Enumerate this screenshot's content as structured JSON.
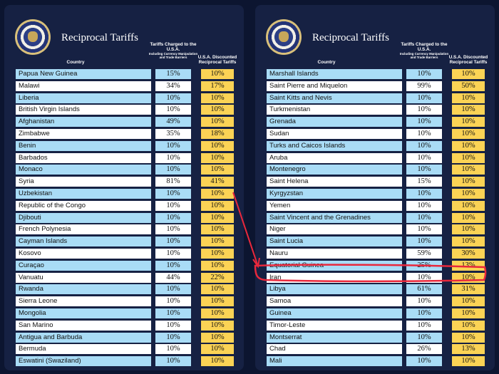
{
  "title": "Reciprocal Tariffs",
  "headers": {
    "country": "Country",
    "charged": "Tariffs Charged to the U.S.A.",
    "charged_sub": "Including Currency Manipulation and Trade Barriers",
    "discounted": "U.S.A. Discounted Reciprocal Tariffs"
  },
  "colors": {
    "row_blue": "#a9dcf6",
    "row_white": "#ffffff",
    "discount_yellow": "#fbd355",
    "panel_navy": "#162143",
    "highlight_red": "#e8283c"
  },
  "icons": {
    "seal": "presidential-seal-icon"
  },
  "annotation": {
    "highlighted_country": "Iran",
    "type": "red-arrow-and-outline"
  },
  "left_table": [
    {
      "country": "Papua New Guinea",
      "charged": "15%",
      "discounted": "10%"
    },
    {
      "country": "Malawi",
      "charged": "34%",
      "discounted": "17%"
    },
    {
      "country": "Liberia",
      "charged": "10%",
      "discounted": "10%"
    },
    {
      "country": "British Virgin Islands",
      "charged": "10%",
      "discounted": "10%"
    },
    {
      "country": "Afghanistan",
      "charged": "49%",
      "discounted": "10%"
    },
    {
      "country": "Zimbabwe",
      "charged": "35%",
      "discounted": "18%"
    },
    {
      "country": "Benin",
      "charged": "10%",
      "discounted": "10%"
    },
    {
      "country": "Barbados",
      "charged": "10%",
      "discounted": "10%"
    },
    {
      "country": "Monaco",
      "charged": "10%",
      "discounted": "10%"
    },
    {
      "country": "Syria",
      "charged": "81%",
      "discounted": "41%"
    },
    {
      "country": "Uzbekistan",
      "charged": "10%",
      "discounted": "10%"
    },
    {
      "country": "Republic of the Congo",
      "charged": "10%",
      "discounted": "10%"
    },
    {
      "country": "Djibouti",
      "charged": "10%",
      "discounted": "10%"
    },
    {
      "country": "French Polynesia",
      "charged": "10%",
      "discounted": "10%"
    },
    {
      "country": "Cayman Islands",
      "charged": "10%",
      "discounted": "10%"
    },
    {
      "country": "Kosovo",
      "charged": "10%",
      "discounted": "10%"
    },
    {
      "country": "Curaçao",
      "charged": "10%",
      "discounted": "10%"
    },
    {
      "country": "Vanuatu",
      "charged": "44%",
      "discounted": "22%"
    },
    {
      "country": "Rwanda",
      "charged": "10%",
      "discounted": "10%"
    },
    {
      "country": "Sierra Leone",
      "charged": "10%",
      "discounted": "10%"
    },
    {
      "country": "Mongolia",
      "charged": "10%",
      "discounted": "10%"
    },
    {
      "country": "San Marino",
      "charged": "10%",
      "discounted": "10%"
    },
    {
      "country": "Antigua and Barbuda",
      "charged": "10%",
      "discounted": "10%"
    },
    {
      "country": "Bermuda",
      "charged": "10%",
      "discounted": "10%"
    },
    {
      "country": "Eswatini (Swaziland)",
      "charged": "10%",
      "discounted": "10%"
    }
  ],
  "right_table": [
    {
      "country": "Marshall Islands",
      "charged": "10%",
      "discounted": "10%"
    },
    {
      "country": "Saint Pierre and Miquelon",
      "charged": "99%",
      "discounted": "50%"
    },
    {
      "country": "Saint Kitts and Nevis",
      "charged": "10%",
      "discounted": "10%"
    },
    {
      "country": "Turkmenistan",
      "charged": "10%",
      "discounted": "10%"
    },
    {
      "country": "Grenada",
      "charged": "10%",
      "discounted": "10%"
    },
    {
      "country": "Sudan",
      "charged": "10%",
      "discounted": "10%"
    },
    {
      "country": "Turks and Caicos Islands",
      "charged": "10%",
      "discounted": "10%"
    },
    {
      "country": "Aruba",
      "charged": "10%",
      "discounted": "10%"
    },
    {
      "country": "Montenegro",
      "charged": "10%",
      "discounted": "10%"
    },
    {
      "country": "Saint Helena",
      "charged": "15%",
      "discounted": "10%"
    },
    {
      "country": "Kyrgyzstan",
      "charged": "10%",
      "discounted": "10%"
    },
    {
      "country": "Yemen",
      "charged": "10%",
      "discounted": "10%"
    },
    {
      "country": "Saint Vincent and the Grenadines",
      "charged": "10%",
      "discounted": "10%"
    },
    {
      "country": "Niger",
      "charged": "10%",
      "discounted": "10%"
    },
    {
      "country": "Saint Lucia",
      "charged": "10%",
      "discounted": "10%"
    },
    {
      "country": "Nauru",
      "charged": "59%",
      "discounted": "30%"
    },
    {
      "country": "Equatorial Guinea",
      "charged": "25%",
      "discounted": "13%"
    },
    {
      "country": "Iran",
      "charged": "10%",
      "discounted": "10%"
    },
    {
      "country": "Libya",
      "charged": "61%",
      "discounted": "31%"
    },
    {
      "country": "Samoa",
      "charged": "10%",
      "discounted": "10%"
    },
    {
      "country": "Guinea",
      "charged": "10%",
      "discounted": "10%"
    },
    {
      "country": "Timor-Leste",
      "charged": "10%",
      "discounted": "10%"
    },
    {
      "country": "Montserrat",
      "charged": "10%",
      "discounted": "10%"
    },
    {
      "country": "Chad",
      "charged": "26%",
      "discounted": "13%"
    },
    {
      "country": "Mali",
      "charged": "10%",
      "discounted": "10%"
    }
  ]
}
